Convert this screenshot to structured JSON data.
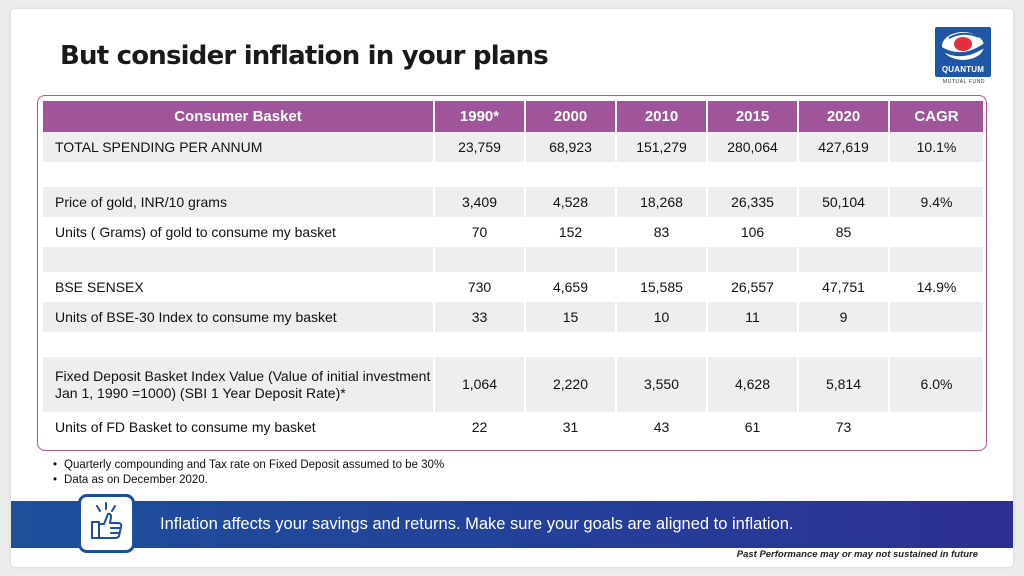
{
  "title": "But consider inflation in your plans",
  "logo": {
    "name": "QUANTUM",
    "subtitle": "MUTUAL FUND"
  },
  "table": {
    "headers": [
      "Consumer Basket",
      "1990*",
      "2000",
      "2010",
      "2015",
      "2020",
      "CAGR"
    ],
    "rows": [
      {
        "label": "TOTAL SPENDING PER ANNUM",
        "values": [
          "23,759",
          "68,923",
          "151,279",
          "280,064",
          "427,619"
        ],
        "cagr": "10.1%"
      },
      {
        "label": "Price of gold, INR/10 grams",
        "values": [
          "3,409",
          "4,528",
          "18,268",
          "26,335",
          "50,104"
        ],
        "cagr": "9.4%"
      },
      {
        "label": "Units ( Grams) of gold to consume my basket",
        "values": [
          "70",
          "152",
          "83",
          "106",
          "85"
        ],
        "cagr": ""
      },
      {
        "label": "BSE SENSEX",
        "values": [
          "730",
          "4,659",
          "15,585",
          "26,557",
          "47,751"
        ],
        "cagr": "14.9%"
      },
      {
        "label": "Units  of BSE-30 Index to consume my basket",
        "values": [
          "33",
          "15",
          "10",
          "11",
          "9"
        ],
        "cagr": ""
      },
      {
        "label": "Fixed Deposit Basket Index Value (Value of initial investment Jan 1, 1990 =1000) (SBI 1 Year Deposit Rate)*",
        "values": [
          "1,064",
          "2,220",
          "3,550",
          "4,628",
          "5,814"
        ],
        "cagr": "6.0%"
      },
      {
        "label": "Units  of FD Basket to consume my basket",
        "values": [
          "22",
          "31",
          "43",
          "61",
          "73"
        ],
        "cagr": ""
      }
    ]
  },
  "notes": [
    "Quarterly compounding and Tax rate on Fixed Deposit assumed to be 30%",
    "Data as on December 2020."
  ],
  "banner": {
    "text": "Inflation affects your savings and returns. Make sure your goals are aligned to inflation.",
    "icon": "thumbs-up-icon"
  },
  "disclaimer": "Past Performance may or may not sustained in future",
  "colors": {
    "header": "#a0559b",
    "banner": "#24409a",
    "title": "#1a1a1a"
  }
}
